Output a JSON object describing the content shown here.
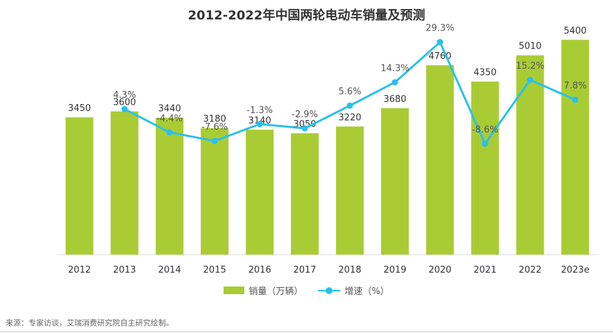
{
  "chart_data": {
    "type": "bar+line",
    "title": "2012-2022年中国两轮电动车销量及预测",
    "categories": [
      "2012",
      "2013",
      "2014",
      "2015",
      "2016",
      "2017",
      "2018",
      "2019",
      "2020",
      "2021",
      "2022",
      "2023e"
    ],
    "series": [
      {
        "name": "销量（万辆）",
        "type": "bar",
        "values": [
          3450,
          3600,
          3440,
          3180,
          3140,
          3050,
          3220,
          3680,
          4760,
          4350,
          5010,
          5400
        ],
        "labels": [
          "3450",
          "3600",
          "3440",
          "3180",
          "3140",
          "3050",
          "3220",
          "3680",
          "4760",
          "4350",
          "5010",
          "5400"
        ],
        "color": "#a9cc35",
        "ylim": [
          0,
          6400
        ]
      },
      {
        "name": "增速（%）",
        "type": "line",
        "values": [
          null,
          4.3,
          -4.4,
          -7.6,
          -1.3,
          -2.9,
          5.6,
          14.3,
          29.3,
          -8.6,
          15.2,
          7.8
        ],
        "labels": [
          "",
          "4.3%",
          "-4.4%",
          "-7.6%",
          "-1.3%",
          "-2.9%",
          "5.6%",
          "14.3%",
          "29.3%",
          "-8.6%",
          "15.2%",
          "7.8%"
        ],
        "color": "#29c0ea",
        "ylim": [
          -50,
          45
        ]
      }
    ],
    "legend": [
      "销量（万辆）",
      "增速（%）"
    ],
    "legend_position": "bottom-center",
    "grid": false
  },
  "source": "来源：专家访谈，艾瑞消费研究院自主研究绘制。"
}
